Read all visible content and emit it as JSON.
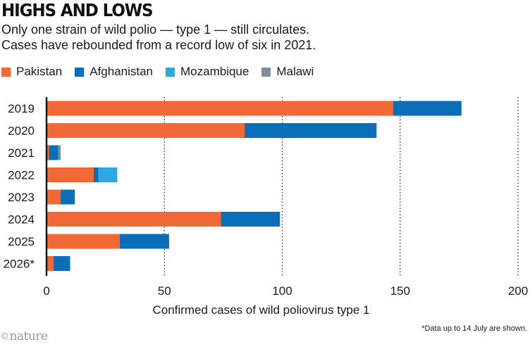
{
  "header": {
    "title": "HIGHS AND LOWS",
    "subtitle_line1": "Only one strain of wild polio — type 1 — still circulates.",
    "subtitle_line2": "Cases have rebounded from a record low of six in 2021."
  },
  "legend": [
    {
      "label": "Pakistan",
      "color": "#f26836"
    },
    {
      "label": "Afghanistan",
      "color": "#0a6eb8"
    },
    {
      "label": "Mozambique",
      "color": "#2ea9e0"
    },
    {
      "label": "Malawi",
      "color": "#7f8d9b"
    }
  ],
  "chart_data": {
    "type": "bar",
    "orientation": "horizontal",
    "stacked": true,
    "categories": [
      "2019",
      "2020",
      "2021",
      "2022",
      "2023",
      "2024",
      "2025",
      "2026*"
    ],
    "series": [
      {
        "name": "Pakistan",
        "color": "#f26836",
        "values": [
          147,
          84,
          1,
          20,
          6,
          74,
          31,
          3
        ]
      },
      {
        "name": "Afghanistan",
        "color": "#0a6eb8",
        "values": [
          29,
          56,
          4,
          2,
          6,
          25,
          21,
          7
        ]
      },
      {
        "name": "Mozambique",
        "color": "#2ea9e0",
        "values": [
          0,
          0,
          0,
          8,
          0,
          0,
          0,
          0
        ]
      },
      {
        "name": "Malawi",
        "color": "#7f8d9b",
        "values": [
          0,
          0,
          1,
          0,
          0,
          0,
          0,
          0
        ]
      }
    ],
    "xlabel": "Confirmed cases of wild poliovirus type 1",
    "xlim": [
      0,
      200
    ],
    "xticks": [
      0,
      50,
      100,
      150,
      200
    ],
    "grid": "vertical dotted",
    "legend_position": "top-left"
  },
  "footnote": "*Data up to 14 July are shown.",
  "brand": {
    "symbol": "©",
    "name": "nature"
  }
}
